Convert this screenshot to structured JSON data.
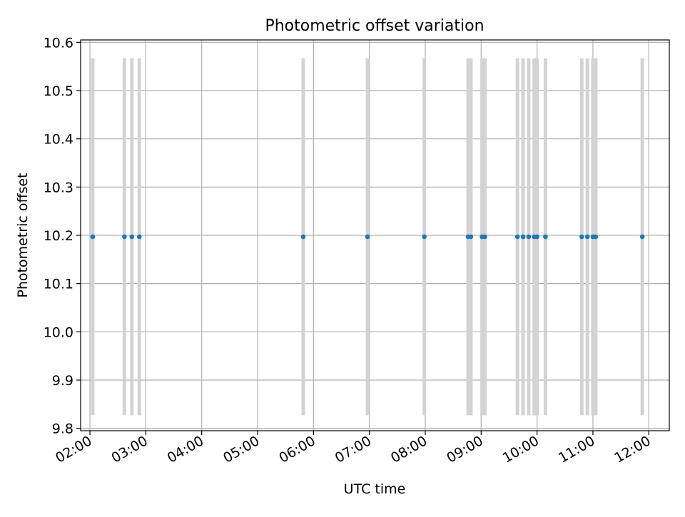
{
  "chart_data": {
    "type": "scatter",
    "title": "Photometric offset variation",
    "xlabel": "UTC time",
    "ylabel": "Photometric offset",
    "x_ticks": [
      "02:00",
      "03:00",
      "04:00",
      "05:00",
      "06:00",
      "07:00",
      "08:00",
      "09:00",
      "10:00",
      "11:00",
      "12:00"
    ],
    "y_ticks": [
      "9.8",
      "9.9",
      "10.0",
      "10.1",
      "10.2",
      "10.3",
      "10.4",
      "10.5",
      "10.6"
    ],
    "xlim": [
      "01:50",
      "12:22"
    ],
    "ylim": [
      9.795,
      10.605
    ],
    "grid": true,
    "error_bar_color": "#d3d3d3",
    "marker_color": "#1f77b4",
    "points": [
      {
        "x": "02:03",
        "y": 10.197,
        "yerr": 0.37
      },
      {
        "x": "02:37",
        "y": 10.197,
        "yerr": 0.37
      },
      {
        "x": "02:45",
        "y": 10.197,
        "yerr": 0.37
      },
      {
        "x": "02:53",
        "y": 10.197,
        "yerr": 0.37
      },
      {
        "x": "05:49",
        "y": 10.197,
        "yerr": 0.37
      },
      {
        "x": "06:58",
        "y": 10.197,
        "yerr": 0.37
      },
      {
        "x": "07:59",
        "y": 10.197,
        "yerr": 0.37
      },
      {
        "x": "08:46",
        "y": 10.197,
        "yerr": 0.37
      },
      {
        "x": "08:49",
        "y": 10.197,
        "yerr": 0.37
      },
      {
        "x": "09:01",
        "y": 10.197,
        "yerr": 0.37
      },
      {
        "x": "09:04",
        "y": 10.197,
        "yerr": 0.37
      },
      {
        "x": "09:39",
        "y": 10.197,
        "yerr": 0.37
      },
      {
        "x": "09:45",
        "y": 10.197,
        "yerr": 0.37
      },
      {
        "x": "09:51",
        "y": 10.197,
        "yerr": 0.37
      },
      {
        "x": "09:57",
        "y": 10.197,
        "yerr": 0.37
      },
      {
        "x": "10:00",
        "y": 10.197,
        "yerr": 0.37
      },
      {
        "x": "10:09",
        "y": 10.197,
        "yerr": 0.37
      },
      {
        "x": "10:48",
        "y": 10.197,
        "yerr": 0.37
      },
      {
        "x": "10:54",
        "y": 10.197,
        "yerr": 0.37
      },
      {
        "x": "11:00",
        "y": 10.197,
        "yerr": 0.37
      },
      {
        "x": "11:03",
        "y": 10.197,
        "yerr": 0.37
      },
      {
        "x": "11:53",
        "y": 10.197,
        "yerr": 0.37
      }
    ]
  }
}
